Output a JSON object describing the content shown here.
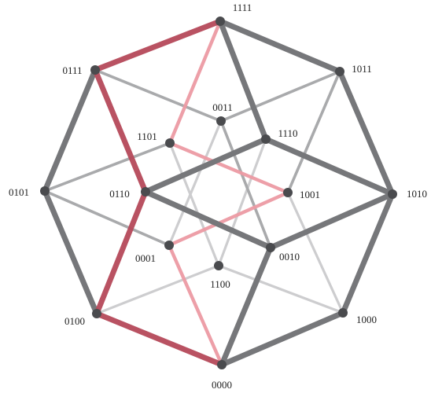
{
  "colors": {
    "outer_edge": "#76777a",
    "inner_edge": "#a9aaac",
    "faint_edge": "#cdcdcf",
    "node": "#4a4b4e",
    "highlight_dark": "#b5495a",
    "highlight_light": "#ec9aa3",
    "label": "#222222"
  },
  "nodes": [
    {
      "id": "0000",
      "label": "0000"
    },
    {
      "id": "0001",
      "label": "0001"
    },
    {
      "id": "0010",
      "label": "0010"
    },
    {
      "id": "0011",
      "label": "0011"
    },
    {
      "id": "0100",
      "label": "0100"
    },
    {
      "id": "0101",
      "label": "0101"
    },
    {
      "id": "0110",
      "label": "0110"
    },
    {
      "id": "0111",
      "label": "0111"
    },
    {
      "id": "1000",
      "label": "1000"
    },
    {
      "id": "1001",
      "label": "1001"
    },
    {
      "id": "1010",
      "label": "1010"
    },
    {
      "id": "1011",
      "label": "1011"
    },
    {
      "id": "1100",
      "label": "1100"
    },
    {
      "id": "1101",
      "label": "1101"
    },
    {
      "id": "1110",
      "label": "1110"
    },
    {
      "id": "1111",
      "label": "1111"
    }
  ],
  "edges": [
    {
      "a": "0000",
      "b": "0100",
      "style": "highlight_dark"
    },
    {
      "a": "0100",
      "b": "0110",
      "style": "highlight_dark"
    },
    {
      "a": "0110",
      "b": "0111",
      "style": "highlight_dark"
    },
    {
      "a": "0111",
      "b": "1111",
      "style": "highlight_dark"
    },
    {
      "a": "0000",
      "b": "0001",
      "style": "highlight_light"
    },
    {
      "a": "0001",
      "b": "1001",
      "style": "highlight_light"
    },
    {
      "a": "1001",
      "b": "1101",
      "style": "highlight_light"
    },
    {
      "a": "1101",
      "b": "1111",
      "style": "highlight_light"
    },
    {
      "a": "0000",
      "b": "1000",
      "style": "outer"
    },
    {
      "a": "1000",
      "b": "1010",
      "style": "outer"
    },
    {
      "a": "1010",
      "b": "1011",
      "style": "outer"
    },
    {
      "a": "1011",
      "b": "1111",
      "style": "outer"
    },
    {
      "a": "0100",
      "b": "0101",
      "style": "outer"
    },
    {
      "a": "0101",
      "b": "0111",
      "style": "outer"
    },
    {
      "a": "0000",
      "b": "0010",
      "style": "outer"
    },
    {
      "a": "0010",
      "b": "1010",
      "style": "outer"
    },
    {
      "a": "0110",
      "b": "0010",
      "style": "outer"
    },
    {
      "a": "0110",
      "b": "1110",
      "style": "outer"
    },
    {
      "a": "1110",
      "b": "1010",
      "style": "outer"
    },
    {
      "a": "1110",
      "b": "1111",
      "style": "outer"
    },
    {
      "a": "0101",
      "b": "0001",
      "style": "inner"
    },
    {
      "a": "0101",
      "b": "1101",
      "style": "inner"
    },
    {
      "a": "0111",
      "b": "0011",
      "style": "inner"
    },
    {
      "a": "0011",
      "b": "1011",
      "style": "inner"
    },
    {
      "a": "0011",
      "b": "0010",
      "style": "inner"
    },
    {
      "a": "1011",
      "b": "1001",
      "style": "inner"
    },
    {
      "a": "1010",
      "b": "1000",
      "style": "inner"
    },
    {
      "a": "0100",
      "b": "1100",
      "style": "faint"
    },
    {
      "a": "1100",
      "b": "1000",
      "style": "faint"
    },
    {
      "a": "1100",
      "b": "1110",
      "style": "faint"
    },
    {
      "a": "1100",
      "b": "1101",
      "style": "faint"
    },
    {
      "a": "1000",
      "b": "1001",
      "style": "faint"
    },
    {
      "a": "0001",
      "b": "0011",
      "style": "faint"
    }
  ]
}
